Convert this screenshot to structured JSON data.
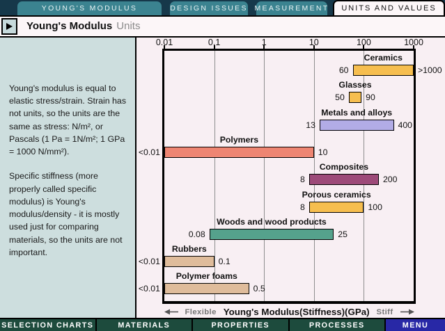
{
  "tabs": [
    {
      "label": "YOUNG'S MODULUS",
      "active": false
    },
    {
      "label": "DESIGN ISSUES",
      "active": false
    },
    {
      "label": "MEASUREMENT",
      "active": false
    },
    {
      "label": "UNITS AND VALUES",
      "active": true
    }
  ],
  "header": {
    "title": "Young's Modulus",
    "subtitle": "Units"
  },
  "sidebar": {
    "paragraph1": "Young's modulus is equal to elastic stress/strain. Strain has not units, so the units are the same as stress: N/m², or Pascals (1 Pa = 1N/m²; 1 GPa = 1000 N/mm²).",
    "paragraph2": "Specific stiffness (more properly called specific modulus) is Young's modulus/density - it is mostly used just for comparing materials, so the units are not important."
  },
  "chart_data": {
    "type": "bar",
    "orientation": "horizontal-range",
    "scale": "log",
    "xmin": 0.01,
    "xmax": 1000,
    "ticks": [
      "0.01",
      "0.1",
      "1",
      "10",
      "100",
      "1000"
    ],
    "tick_values": [
      0.01,
      0.1,
      1,
      10,
      100,
      1000
    ],
    "xlabel": "Young's Modulus(Stiffness)(GPa)",
    "left_hint": "Flexible",
    "right_hint": "Stiff",
    "grid": true,
    "series": [
      {
        "name": "Ceramics",
        "low": 60,
        "high": 1000,
        "low_label": "60",
        "high_label": ">1000",
        "color": "#F6BE4F"
      },
      {
        "name": "Glasses",
        "low": 50,
        "high": 90,
        "low_label": "50",
        "high_label": "90",
        "color": "#F6BE4F"
      },
      {
        "name": "Metals and alloys",
        "low": 13,
        "high": 400,
        "low_label": "13",
        "high_label": "400",
        "color": "#B2ACE6"
      },
      {
        "name": "Polymers",
        "low": 0.01,
        "high": 10,
        "low_label": "<0.01",
        "high_label": "10",
        "color": "#EE8572"
      },
      {
        "name": "Composites",
        "low": 8,
        "high": 200,
        "low_label": "8",
        "high_label": "200",
        "color": "#9D4A79"
      },
      {
        "name": "Porous ceramics",
        "low": 8,
        "high": 100,
        "low_label": "8",
        "high_label": "100",
        "color": "#F6BE4F"
      },
      {
        "name": "Woods and wood products",
        "low": 0.08,
        "high": 25,
        "low_label": "0.08",
        "high_label": "25",
        "color": "#55A28C"
      },
      {
        "name": "Rubbers",
        "low": 0.01,
        "high": 0.1,
        "low_label": "<0.01",
        "high_label": "0.1",
        "color": "#DFBC9B"
      },
      {
        "name": "Polymer foams",
        "low": 0.01,
        "high": 0.5,
        "low_label": "<0.01",
        "high_label": "0.5",
        "color": "#DFBC9B"
      }
    ]
  },
  "nav": {
    "items": [
      {
        "label": "SELECTION CHARTS",
        "accent": false
      },
      {
        "label": "MATERIALS",
        "accent": false
      },
      {
        "label": "PROPERTIES",
        "accent": false
      },
      {
        "label": "PROCESSES",
        "accent": false
      },
      {
        "label": "MENU",
        "accent": true
      }
    ]
  },
  "colors": {
    "tab_teal": "#3B8390",
    "top_strip": "#16384A",
    "page_bg": "#F8EFF3",
    "panel_bg": "#CDDEDE",
    "nav_green": "#1D4B3D",
    "nav_menu_blue": "#2828A6",
    "gridline": "#8E8E8E"
  }
}
